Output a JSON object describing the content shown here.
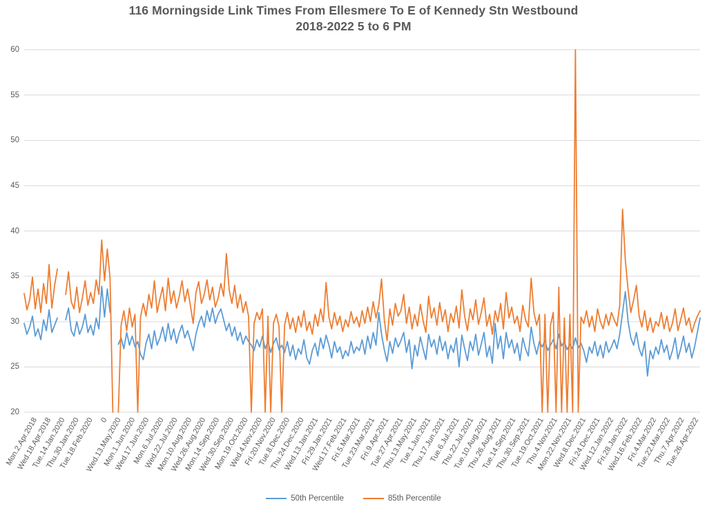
{
  "title": {
    "line1": "116 Morningside Link Times From Ellesmere To E of Kennedy Stn Westbound",
    "line2": "2018-2022 5 to 6 PM"
  },
  "chart_data": {
    "type": "line",
    "title": "116 Morningside Link Times From Ellesmere To E of Kennedy Stn Westbound 2018-2022 5 to 6 PM",
    "xlabel": "",
    "ylabel": "",
    "ylim": [
      20,
      60
    ],
    "y_ticks": [
      20,
      25,
      30,
      35,
      40,
      45,
      50,
      55,
      60
    ],
    "grid": true,
    "legend_position": "bottom",
    "colors": {
      "p50": "#5B9BD5",
      "p85": "#ED7D31",
      "gridline": "#D9D9D9",
      "text": "#595959"
    },
    "x_tick_labels": [
      "Mon.2.Apr.2018",
      "Wed.18.Apr.2018",
      "Tue.14.Jan.2020",
      "Thu.30.Jan.2020",
      "Tue.18.Feb.2020",
      "0",
      "Wed.13.May.2020",
      "Mon.1.Jun.2020",
      "Wed.17.Jun.2020",
      "Mon.6.Jul.2020",
      "Wed.22.Jul.2020",
      "Mon.10.Aug.2020",
      "Wed.26.Aug.2020",
      "Mon.14.Sep.2020",
      "Wed.30.Sep.2020",
      "Mon.19.Oct.2020",
      "Wed.4.Nov.2020",
      "Fri.20.Nov.2020",
      "Tue.8.Dec.2020",
      "Thu.24.Dec.2020",
      "Wed.13.Jan.2021",
      "Fri.29.Jan.2021",
      "Wed.17.Feb.2021",
      "Fri.5.Mar.2021",
      "Tue.23.Mar.2021",
      "Fri.9.Apr.2021",
      "Tue.27.Apr.2021",
      "Thu.13.May.2021",
      "Tue.1.Jun.2021",
      "Thu.17.Jun.2021",
      "Tue.6.Jul.2021",
      "Thu.22.Jul.2021",
      "Tue.10.Aug.2021",
      "Thu.26.Aug.2021",
      "Tue.14.Sep.2021",
      "Thu.30.Sep.2021",
      "Tue.19.Oct.2021",
      "Thu.4.Nov.2021",
      "Mon.22.Nov.2021",
      "Wed.8.Dec.2021",
      "Fri.24.Dec.2021",
      "Wed.12.Jan.2022",
      "Fri.28.Jan.2022",
      "Wed.16.Feb.2022",
      "Fri.4.Mar.2022",
      "Tue.22.Mar.2022",
      "Thu.7.Apr.2022",
      "Tue.26.Apr.2022"
    ],
    "series": [
      {
        "name": "50th Percentile",
        "color": "#5B9BD5",
        "values": [
          29.8,
          28.6,
          29.4,
          30.6,
          28.4,
          29.2,
          28.0,
          30.2,
          29.0,
          31.3,
          28.8,
          29.6,
          30.4,
          null,
          null,
          30.2,
          31.5,
          29.0,
          28.4,
          30.0,
          28.6,
          29.4,
          30.8,
          28.8,
          29.6,
          28.5,
          30.4,
          29.2,
          33.9,
          30.5,
          33.6,
          31.0,
          null,
          null,
          27.5,
          28.2,
          27.0,
          28.8,
          27.4,
          28.4,
          27.2,
          27.8,
          26.4,
          25.8,
          27.6,
          28.6,
          27.0,
          29.0,
          27.4,
          28.2,
          29.4,
          27.8,
          29.8,
          28.0,
          29.2,
          27.6,
          28.8,
          29.6,
          28.2,
          29.0,
          27.9,
          26.8,
          28.6,
          29.8,
          30.6,
          29.4,
          31.2,
          30.0,
          31.5,
          29.8,
          30.8,
          31.4,
          30.2,
          29.0,
          29.8,
          28.4,
          29.4,
          27.9,
          28.8,
          27.5,
          28.4,
          27.8,
          27.4,
          26.8,
          28.0,
          27.2,
          28.4,
          27.0,
          27.8,
          26.6,
          27.6,
          28.2,
          26.9,
          27.4,
          26.6,
          27.8,
          26.2,
          27.4,
          25.8,
          27.0,
          26.4,
          28.0,
          26.0,
          25.3,
          26.8,
          27.6,
          26.2,
          28.2,
          27.0,
          28.5,
          27.4,
          26.0,
          27.8,
          26.6,
          27.2,
          25.9,
          26.8,
          26.2,
          27.8,
          26.5,
          27.2,
          26.8,
          28.0,
          26.4,
          28.4,
          27.0,
          28.8,
          27.4,
          31.0,
          28.6,
          26.9,
          25.6,
          27.8,
          26.5,
          28.2,
          27.2,
          27.9,
          28.8,
          26.6,
          28.0,
          24.8,
          27.4,
          26.2,
          28.3,
          27.0,
          25.8,
          28.6,
          27.2,
          28.0,
          26.4,
          28.4,
          26.8,
          27.8,
          25.9,
          27.4,
          26.6,
          28.2,
          25.0,
          28.5,
          27.0,
          25.7,
          27.8,
          26.8,
          28.6,
          26.3,
          27.5,
          28.8,
          26.1,
          27.3,
          25.4,
          29.8,
          27.0,
          28.4,
          25.9,
          28.8,
          27.1,
          28.0,
          26.5,
          27.6,
          25.7,
          28.2,
          27.0,
          26.2,
          29.4,
          27.6,
          26.4,
          27.8,
          27.2,
          27.9,
          26.8,
          27.4,
          28.0,
          27.0,
          28.6,
          27.3,
          27.8,
          26.9,
          27.5,
          27.0,
          28.2,
          27.1,
          27.6,
          26.8,
          25.5,
          27.2,
          26.5,
          27.8,
          26.2,
          27.4,
          26.0,
          27.8,
          26.6,
          27.2,
          28.0,
          27.0,
          28.6,
          31.0,
          33.3,
          30.0,
          28.2,
          27.4,
          28.8,
          27.0,
          26.2,
          27.8,
          24.0,
          26.8,
          25.9,
          27.2,
          26.4,
          28.0,
          26.6,
          27.4,
          25.8,
          26.8,
          28.2,
          25.9,
          27.0,
          28.4,
          26.6,
          27.6,
          26.0,
          27.2,
          28.8,
          30.4
        ]
      },
      {
        "name": "85th Percentile",
        "color": "#ED7D31",
        "values": [
          33.1,
          31.3,
          32.4,
          34.9,
          31.4,
          33.6,
          31.0,
          34.2,
          32.0,
          36.3,
          31.5,
          34.0,
          35.8,
          null,
          null,
          33.0,
          35.5,
          32.2,
          31.4,
          33.8,
          31.0,
          32.6,
          34.5,
          31.8,
          33.2,
          32.0,
          34.6,
          33.0,
          39.0,
          34.5,
          38.0,
          34.8,
          20.0,
          null,
          20.0,
          29.6,
          31.2,
          29.0,
          31.5,
          29.4,
          30.8,
          20.0,
          30.5,
          32.0,
          30.6,
          33.0,
          31.5,
          34.5,
          31.0,
          32.5,
          33.8,
          31.2,
          34.8,
          32.0,
          33.4,
          31.5,
          32.8,
          34.5,
          32.2,
          33.6,
          31.8,
          29.8,
          33.2,
          34.4,
          32.0,
          33.0,
          34.6,
          32.4,
          33.8,
          31.6,
          32.6,
          34.2,
          32.8,
          37.5,
          33.5,
          32.0,
          34.0,
          31.5,
          33.0,
          31.0,
          32.2,
          30.6,
          20.0,
          29.8,
          31.0,
          30.2,
          31.4,
          20.0,
          30.6,
          20.0,
          29.8,
          30.8,
          29.5,
          20.0,
          29.6,
          31.0,
          29.2,
          30.4,
          28.8,
          30.6,
          29.4,
          31.2,
          29.0,
          30.0,
          28.6,
          30.8,
          29.5,
          31.4,
          30.0,
          34.3,
          30.5,
          29.2,
          31.0,
          29.6,
          30.6,
          28.9,
          30.2,
          29.4,
          31.1,
          29.8,
          30.5,
          29.4,
          31.2,
          29.8,
          31.6,
          30.0,
          32.2,
          30.4,
          31.8,
          34.7,
          30.2,
          27.9,
          31.4,
          29.6,
          32.0,
          30.6,
          31.2,
          33.0,
          29.8,
          31.6,
          29.2,
          30.8,
          29.5,
          31.9,
          30.1,
          28.8,
          32.8,
          30.4,
          31.5,
          29.6,
          32.1,
          30.0,
          31.3,
          28.9,
          30.9,
          29.9,
          31.7,
          29.3,
          33.5,
          30.6,
          29.0,
          31.4,
          30.2,
          32.4,
          29.7,
          31.0,
          32.6,
          29.5,
          30.8,
          28.6,
          31.2,
          30.0,
          32.0,
          29.2,
          33.2,
          30.4,
          31.6,
          29.8,
          30.6,
          28.9,
          31.8,
          30.2,
          29.4,
          34.8,
          31.0,
          29.6,
          30.8,
          20.0,
          30.8,
          20.0,
          29.6,
          31.0,
          20.0,
          33.8,
          20.0,
          30.4,
          20.0,
          30.8,
          20.0,
          60.0,
          20.0,
          30.5,
          29.8,
          31.2,
          29.4,
          30.6,
          28.9,
          31.4,
          30.0,
          29.2,
          30.8,
          29.6,
          31.0,
          30.2,
          29.5,
          31.8,
          42.4,
          36.8,
          33.5,
          31.0,
          32.4,
          34.0,
          30.6,
          29.4,
          31.2,
          29.0,
          30.4,
          28.8,
          30.0,
          29.5,
          31.0,
          29.2,
          30.6,
          28.9,
          29.8,
          31.4,
          29.0,
          30.2,
          31.5,
          29.6,
          30.4,
          28.8,
          29.8,
          30.6,
          31.2
        ]
      }
    ]
  }
}
